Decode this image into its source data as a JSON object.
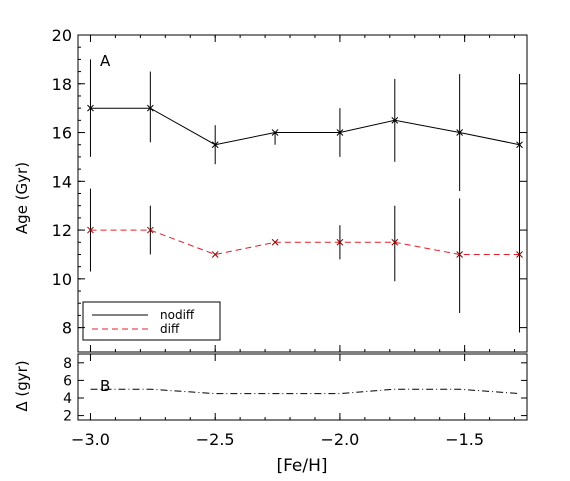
{
  "chart_data": [
    {
      "type": "line",
      "panel_label": "A",
      "xlabel": "",
      "ylabel": "Age (Gyr)",
      "xlim": [
        -3.05,
        -1.25
      ],
      "ylim": [
        7,
        20
      ],
      "x": [
        -3.0,
        -2.76,
        -2.5,
        -2.26,
        -2.0,
        -1.78,
        -1.52,
        -1.28
      ],
      "yticks": [
        8,
        10,
        12,
        14,
        16,
        18,
        20
      ],
      "ytick_labels": [
        "8",
        "10",
        "12",
        "14",
        "16",
        "18",
        "20"
      ],
      "grid": false,
      "legend_position": "bottom-left",
      "series": [
        {
          "name": "nodiff",
          "color": "#000000",
          "dash": "solid",
          "values": [
            17.0,
            17.0,
            15.5,
            16.0,
            16.0,
            16.5,
            16.0,
            15.5
          ],
          "err_low": [
            15.0,
            15.6,
            14.7,
            15.5,
            15.0,
            14.8,
            13.6,
            7.8
          ],
          "err_high": [
            19.0,
            18.5,
            16.3,
            16.0,
            17.0,
            18.2,
            18.4,
            18.4
          ]
        },
        {
          "name": "diff",
          "color": "#e0202a",
          "dash": "dashed",
          "values": [
            12.0,
            12.0,
            11.0,
            11.5,
            11.5,
            11.5,
            11.0,
            11.0
          ],
          "err_low": [
            10.3,
            11.0,
            11.0,
            11.5,
            10.8,
            9.9,
            8.6,
            7.8
          ],
          "err_high": [
            13.7,
            13.0,
            11.0,
            11.5,
            12.2,
            13.0,
            13.3,
            11.0
          ]
        }
      ]
    },
    {
      "type": "line",
      "panel_label": "B",
      "xlabel": "[Fe/H]",
      "ylabel": "Δ (gyr)",
      "xlim": [
        -3.05,
        -1.25
      ],
      "ylim": [
        1.5,
        9
      ],
      "xticks": [
        -3.0,
        -2.5,
        -2.0,
        -1.5
      ],
      "xtick_labels": [
        "−3.0",
        "−2.5",
        "−2.0",
        "−1.5"
      ],
      "yticks": [
        2,
        4,
        6,
        8
      ],
      "ytick_labels": [
        "2",
        "4",
        "6",
        "8"
      ],
      "grid": false,
      "x": [
        -3.0,
        -2.76,
        -2.5,
        -2.26,
        -2.0,
        -1.78,
        -1.52,
        -1.28
      ],
      "series": [
        {
          "color": "#000000",
          "dash": "dashdot",
          "values": [
            5.0,
            5.0,
            4.5,
            4.5,
            4.5,
            5.0,
            5.0,
            4.5
          ]
        }
      ]
    }
  ]
}
